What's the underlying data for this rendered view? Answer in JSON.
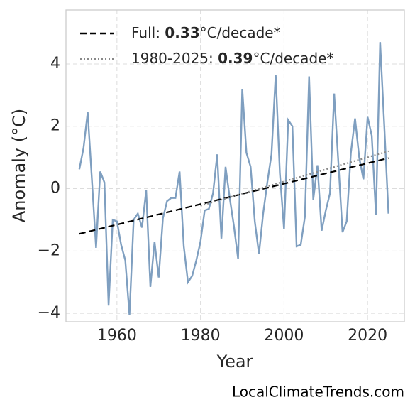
{
  "chart_data": {
    "type": "line",
    "xlabel": "Year",
    "ylabel": "Anomaly (°C)",
    "credit": "LocalClimateTrends.com",
    "xlim": [
      1947.8,
      2028.8
    ],
    "ylim": [
      -4.27,
      5.73
    ],
    "xticks": [
      1960,
      1980,
      2000,
      2020
    ],
    "yticks": [
      {
        "value": -4,
        "label": "−4"
      },
      {
        "value": -2,
        "label": "−2"
      },
      0,
      2,
      4
    ],
    "grid": true,
    "legend": "upper left",
    "series": [
      {
        "color": "#7f9fc0",
        "style": "solid",
        "x": [
          1951,
          1952,
          1953,
          1954,
          1955,
          1956,
          1957,
          1958,
          1959,
          1960,
          1961,
          1962,
          1963,
          1964,
          1965,
          1966,
          1967,
          1968,
          1969,
          1970,
          1971,
          1972,
          1973,
          1974,
          1975,
          1976,
          1977,
          1978,
          1979,
          1980,
          1981,
          1982,
          1983,
          1984,
          1985,
          1986,
          1987,
          1988,
          1989,
          1990,
          1991,
          1992,
          1993,
          1994,
          1995,
          1996,
          1997,
          1998,
          1999,
          2000,
          2001,
          2002,
          2003,
          2004,
          2005,
          2006,
          2007,
          2008,
          2009,
          2010,
          2011,
          2012,
          2013,
          2014,
          2015,
          2016,
          2017,
          2018,
          2019,
          2020,
          2021,
          2022,
          2023,
          2024,
          2025
        ],
        "values": [
          0.62,
          1.3,
          2.45,
          0.3,
          -1.9,
          0.55,
          0.2,
          -3.75,
          -1.0,
          -1.05,
          -1.8,
          -2.3,
          -4.05,
          -1.0,
          -0.8,
          -1.25,
          -0.05,
          -3.15,
          -1.7,
          -2.85,
          -0.95,
          -0.4,
          -0.3,
          -0.3,
          0.55,
          -1.85,
          -3.0,
          -2.8,
          -2.3,
          -1.7,
          -0.7,
          -0.65,
          -0.15,
          1.1,
          -1.6,
          0.7,
          -0.3,
          -1.2,
          -2.25,
          3.2,
          1.15,
          0.7,
          -1.05,
          -2.1,
          -0.8,
          0.2,
          1.1,
          3.65,
          0.5,
          -1.3,
          2.2,
          2.0,
          -1.85,
          -1.8,
          -0.9,
          3.6,
          -0.35,
          0.75,
          -1.35,
          -0.7,
          -0.15,
          3.05,
          0.85,
          -1.4,
          -1.05,
          1.15,
          2.25,
          1.0,
          0.3,
          2.3,
          1.7,
          -0.85,
          4.7,
          2.0,
          -0.8
        ]
      },
      {
        "name": "Full:",
        "slope": 0.33,
        "unit": "°C/decade*",
        "color": "#000000",
        "style": "dashed",
        "x": [
          1951,
          2025
        ],
        "values": [
          -1.45,
          0.98
        ]
      },
      {
        "name": "1980-2025:",
        "slope": 0.39,
        "unit": "°C/decade*",
        "color": "#888888",
        "style": "dotted",
        "x": [
          1980,
          2025
        ],
        "values": [
          -0.55,
          1.2
        ]
      }
    ]
  }
}
